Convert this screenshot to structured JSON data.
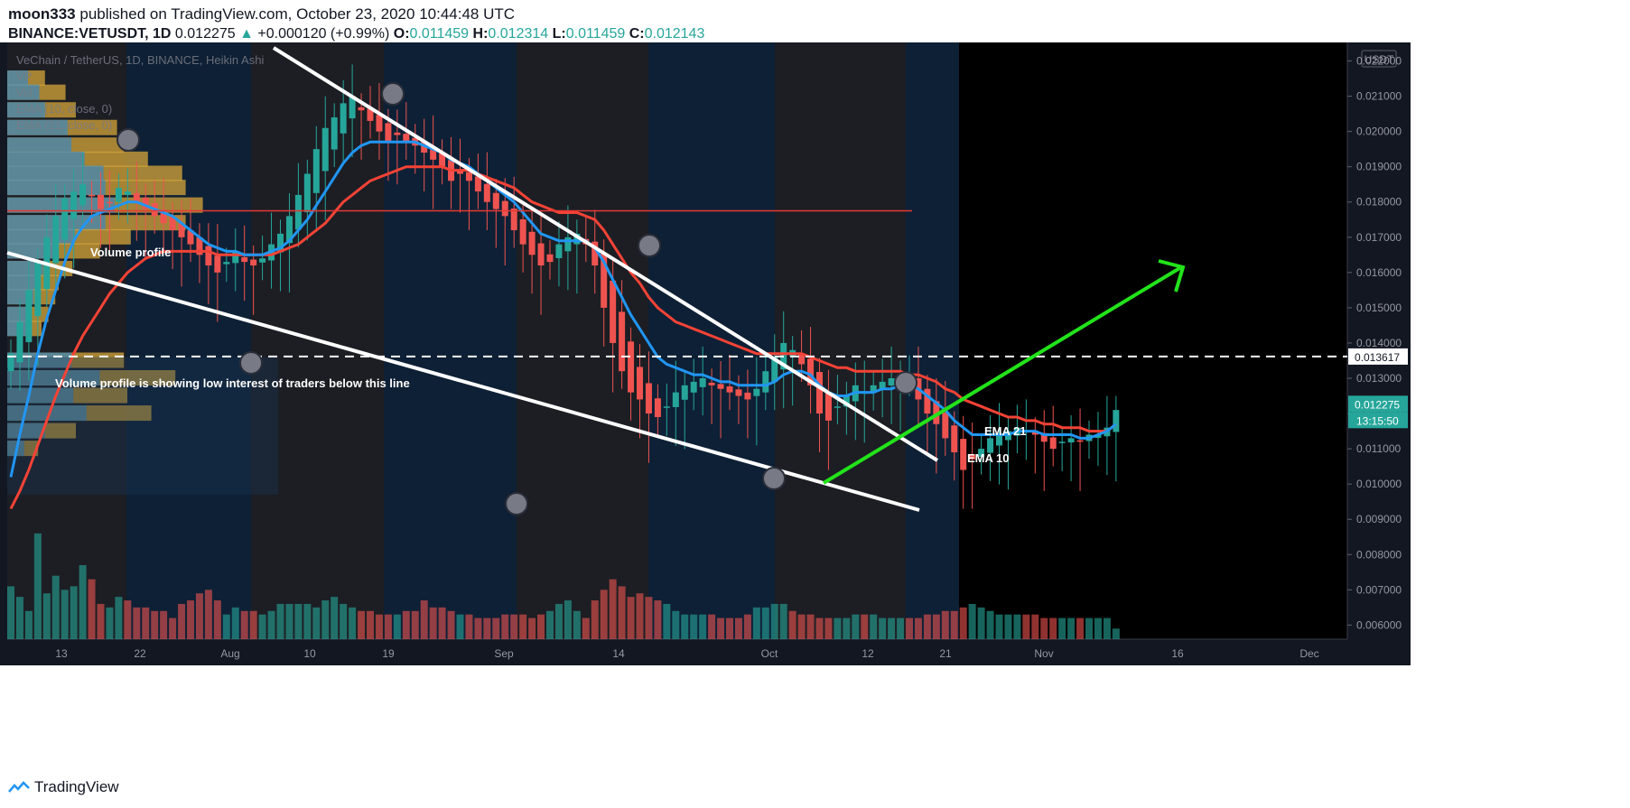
{
  "header": {
    "author": "moon333",
    "published": "published on TradingView.com, October 23, 2020 10:44:48 UTC",
    "symbol": "BINANCE:VETUSDT, 1D",
    "last": "0.012275",
    "change_arrow": "▲",
    "change": "+0.000120 (+0.99%)",
    "o_label": "O:",
    "o": "0.011459",
    "h_label": "H:",
    "h": "0.012314",
    "l_label": "L:",
    "l": "0.011459",
    "c_label": "C:",
    "c": "0.012143"
  },
  "legend": {
    "title": "VeChain / TetherUS, 1D, BINANCE, Heikin Ashi",
    "line2": "VP",
    "line3": "Vol",
    "line4": "EMA (10, close, 0)",
    "line5": "EMA (21, close, 0)"
  },
  "annotations": {
    "vp_label": "Volume profile",
    "vp_note": "Volume profile is showing low interest of traders below this line",
    "ema21": "EMA 21",
    "ema10": "EMA 10"
  },
  "price_axis": {
    "currency": "USDT",
    "level_label": "0.013617",
    "last_label": "0.012275",
    "countdown": "13:15:50"
  },
  "footer": {
    "brand": "TradingView"
  },
  "colors": {
    "background": "#131722",
    "up": "#26a69a",
    "down": "#ef5350",
    "ema10": "#2196f3",
    "ema21": "#f44336",
    "resistance": "#e53935",
    "arrow": "#22e31a",
    "vp": "#d6a53a"
  },
  "chart_data": {
    "type": "candlestick",
    "title": "VeChain / TetherUS, 1D, BINANCE, Heikin Ashi",
    "ylim": [
      0.0056,
      0.0225
    ],
    "y_ticks": [
      "0.022000",
      "0.021000",
      "0.020000",
      "0.019000",
      "0.018000",
      "0.017000",
      "0.016000",
      "0.015000",
      "0.014000",
      "0.013000",
      "0.012000",
      "0.011000",
      "0.010000",
      "0.009000",
      "0.008000",
      "0.007000",
      "0.006000"
    ],
    "x_ticks": [
      "13",
      "22",
      "Aug",
      "10",
      "19",
      "Sep",
      "14",
      "Oct",
      "12",
      "21",
      "Nov",
      "16",
      "Dec"
    ],
    "closes": [
      0.0137,
      0.0146,
      0.0155,
      0.0163,
      0.017,
      0.0176,
      0.0181,
      0.0183,
      0.0185,
      0.0182,
      0.0178,
      0.018,
      0.0184,
      0.0183,
      0.018,
      0.0178,
      0.0176,
      0.0174,
      0.0172,
      0.017,
      0.0168,
      0.0165,
      0.0162,
      0.016,
      0.0163,
      0.0166,
      0.0163,
      0.0162,
      0.0164,
      0.0168,
      0.0171,
      0.0176,
      0.0182,
      0.0188,
      0.0195,
      0.0201,
      0.0204,
      0.0208,
      0.021,
      0.0206,
      0.0203,
      0.02,
      0.0197,
      0.0199,
      0.0197,
      0.0196,
      0.0194,
      0.0192,
      0.019,
      0.0186,
      0.0188,
      0.0186,
      0.0183,
      0.018,
      0.0178,
      0.0176,
      0.0172,
      0.0168,
      0.0165,
      0.0162,
      0.0163,
      0.0168,
      0.017,
      0.0171,
      0.0168,
      0.0162,
      0.015,
      0.014,
      0.0132,
      0.0126,
      0.0124,
      0.012,
      0.0119,
      0.0122,
      0.0126,
      0.0128,
      0.0129,
      0.013,
      0.0128,
      0.0127,
      0.0126,
      0.0125,
      0.0124,
      0.0127,
      0.0132,
      0.0136,
      0.014,
      0.0138,
      0.0134,
      0.0128,
      0.012,
      0.0118,
      0.0122,
      0.0125,
      0.0128,
      0.0126,
      0.0128,
      0.0129,
      0.013,
      0.0131,
      0.013,
      0.0124,
      0.012,
      0.0117,
      0.0113,
      0.0109,
      0.0104,
      0.0107,
      0.011,
      0.0113,
      0.0114,
      0.0115,
      0.0116,
      0.0115,
      0.0114,
      0.0112,
      0.011,
      0.0112,
      0.0113,
      0.0112,
      0.0114,
      0.0114,
      0.0116,
      0.0121
    ],
    "ema10": [
      0.0102,
      0.0114,
      0.0125,
      0.0137,
      0.0147,
      0.0155,
      0.0163,
      0.0169,
      0.0173,
      0.0176,
      0.0177,
      0.0178,
      0.0179,
      0.018,
      0.018,
      0.0179,
      0.0178,
      0.0177,
      0.0176,
      0.0174,
      0.0172,
      0.017,
      0.0168,
      0.0167,
      0.0166,
      0.0166,
      0.0165,
      0.0165,
      0.0165,
      0.0166,
      0.0167,
      0.0169,
      0.0172,
      0.0175,
      0.0179,
      0.0183,
      0.0187,
      0.0191,
      0.0194,
      0.0196,
      0.0197,
      0.0197,
      0.0197,
      0.0197,
      0.0197,
      0.0197,
      0.0196,
      0.0195,
      0.0194,
      0.0192,
      0.0191,
      0.019,
      0.0188,
      0.0186,
      0.0184,
      0.0182,
      0.018,
      0.0177,
      0.0174,
      0.0171,
      0.017,
      0.0169,
      0.0169,
      0.0169,
      0.0169,
      0.0167,
      0.0163,
      0.0158,
      0.0153,
      0.0148,
      0.0144,
      0.014,
      0.0136,
      0.0134,
      0.0133,
      0.0132,
      0.0131,
      0.0131,
      0.013,
      0.0129,
      0.0129,
      0.0128,
      0.0128,
      0.0128,
      0.0128,
      0.0129,
      0.0131,
      0.0132,
      0.0132,
      0.0131,
      0.0128,
      0.0126,
      0.0125,
      0.0125,
      0.0126,
      0.0126,
      0.0126,
      0.0127,
      0.0127,
      0.0128,
      0.0128,
      0.0127,
      0.0125,
      0.0123,
      0.0121,
      0.0118,
      0.0116,
      0.0114,
      0.0114,
      0.0114,
      0.0114,
      0.0114,
      0.0115,
      0.0115,
      0.0115,
      0.0114,
      0.0114,
      0.0114,
      0.0114,
      0.0113,
      0.0113,
      0.0114,
      0.0115,
      0.0117
    ],
    "ema21": [
      0.0093,
      0.0098,
      0.0104,
      0.0111,
      0.0118,
      0.0125,
      0.0131,
      0.0137,
      0.0142,
      0.0146,
      0.015,
      0.0154,
      0.0157,
      0.016,
      0.0162,
      0.0164,
      0.0165,
      0.0166,
      0.0166,
      0.0166,
      0.0166,
      0.0166,
      0.0166,
      0.0165,
      0.0165,
      0.0165,
      0.0165,
      0.0165,
      0.0165,
      0.0165,
      0.0166,
      0.0167,
      0.0168,
      0.017,
      0.0172,
      0.0174,
      0.0177,
      0.018,
      0.0182,
      0.0184,
      0.0186,
      0.0187,
      0.0188,
      0.0189,
      0.019,
      0.019,
      0.019,
      0.019,
      0.019,
      0.0189,
      0.0189,
      0.0189,
      0.0188,
      0.0187,
      0.0186,
      0.0185,
      0.0184,
      0.0182,
      0.018,
      0.0179,
      0.0178,
      0.0177,
      0.0177,
      0.0177,
      0.0176,
      0.0175,
      0.0172,
      0.0168,
      0.0164,
      0.016,
      0.0157,
      0.0153,
      0.015,
      0.0148,
      0.0146,
      0.0145,
      0.0144,
      0.0143,
      0.0142,
      0.0141,
      0.014,
      0.0139,
      0.0138,
      0.0137,
      0.0137,
      0.0137,
      0.0137,
      0.0137,
      0.0137,
      0.0136,
      0.0135,
      0.0134,
      0.0133,
      0.0133,
      0.0132,
      0.0132,
      0.0132,
      0.0132,
      0.0132,
      0.0132,
      0.0131,
      0.0131,
      0.013,
      0.0129,
      0.0127,
      0.0126,
      0.0124,
      0.0123,
      0.0122,
      0.0121,
      0.012,
      0.0119,
      0.0119,
      0.0118,
      0.0118,
      0.0117,
      0.0117,
      0.0116,
      0.0116,
      0.0116,
      0.0115,
      0.0115,
      0.0115,
      0.0117
    ],
    "volume": [
      0.0071,
      0.0068,
      0.0064,
      0.0086,
      0.0069,
      0.0074,
      0.007,
      0.0071,
      0.0077,
      0.0073,
      0.0066,
      0.0065,
      0.0068,
      0.0067,
      0.0065,
      0.0065,
      0.0064,
      0.0064,
      0.0062,
      0.0066,
      0.0067,
      0.0069,
      0.007,
      0.0067,
      0.0063,
      0.0065,
      0.0064,
      0.0064,
      0.0063,
      0.0064,
      0.0066,
      0.0066,
      0.0066,
      0.0066,
      0.0065,
      0.0067,
      0.0068,
      0.0066,
      0.0065,
      0.0064,
      0.0064,
      0.0063,
      0.0063,
      0.0063,
      0.0064,
      0.0064,
      0.0067,
      0.0065,
      0.0065,
      0.0064,
      0.0063,
      0.0063,
      0.0062,
      0.0062,
      0.0062,
      0.0063,
      0.0063,
      0.0063,
      0.0062,
      0.0063,
      0.0064,
      0.0066,
      0.0067,
      0.0064,
      0.0062,
      0.0067,
      0.007,
      0.0073,
      0.0071,
      0.0068,
      0.0069,
      0.0068,
      0.0067,
      0.0066,
      0.0064,
      0.0063,
      0.0063,
      0.0063,
      0.0063,
      0.0062,
      0.0062,
      0.0062,
      0.0063,
      0.0065,
      0.0065,
      0.0066,
      0.0066,
      0.0064,
      0.0063,
      0.0063,
      0.0062,
      0.0062,
      0.0062,
      0.0062,
      0.0063,
      0.0063,
      0.0063,
      0.0062,
      0.0062,
      0.0062,
      0.0062,
      0.0062,
      0.0063,
      0.0063,
      0.0064,
      0.0064,
      0.0065,
      0.0066,
      0.0065,
      0.0064,
      0.0063,
      0.0063,
      0.0063,
      0.0063,
      0.0063,
      0.0062,
      0.0062,
      0.0062,
      0.0062,
      0.0062,
      0.0062,
      0.0062,
      0.0062,
      0.0059
    ],
    "resistance_level": 0.01775,
    "support_level_dashed": 0.013617,
    "last_price": 0.012275,
    "volume_profile": [
      {
        "price": 0.0215,
        "width": 0.55
      },
      {
        "price": 0.0211,
        "width": 0.85
      },
      {
        "price": 0.0206,
        "width": 1.0
      },
      {
        "price": 0.0201,
        "width": 1.6
      },
      {
        "price": 0.0196,
        "width": 1.7
      },
      {
        "price": 0.0192,
        "width": 2.05
      },
      {
        "price": 0.0188,
        "width": 2.55
      },
      {
        "price": 0.0184,
        "width": 2.6
      },
      {
        "price": 0.0179,
        "width": 2.85
      },
      {
        "price": 0.0174,
        "width": 2.6
      },
      {
        "price": 0.017,
        "width": 1.8
      },
      {
        "price": 0.0166,
        "width": 1.35
      },
      {
        "price": 0.0161,
        "width": 0.95
      },
      {
        "price": 0.0157,
        "width": 0.75
      },
      {
        "price": 0.0153,
        "width": 0.7
      },
      {
        "price": 0.0148,
        "width": 0.6
      },
      {
        "price": 0.0144,
        "width": 0.5
      },
      {
        "price": 0.0135,
        "width": 1.7
      },
      {
        "price": 0.013,
        "width": 2.45
      },
      {
        "price": 0.0125,
        "width": 1.75
      },
      {
        "price": 0.012,
        "width": 2.1
      },
      {
        "price": 0.0115,
        "width": 1.0
      },
      {
        "price": 0.011,
        "width": 0.45
      }
    ]
  }
}
